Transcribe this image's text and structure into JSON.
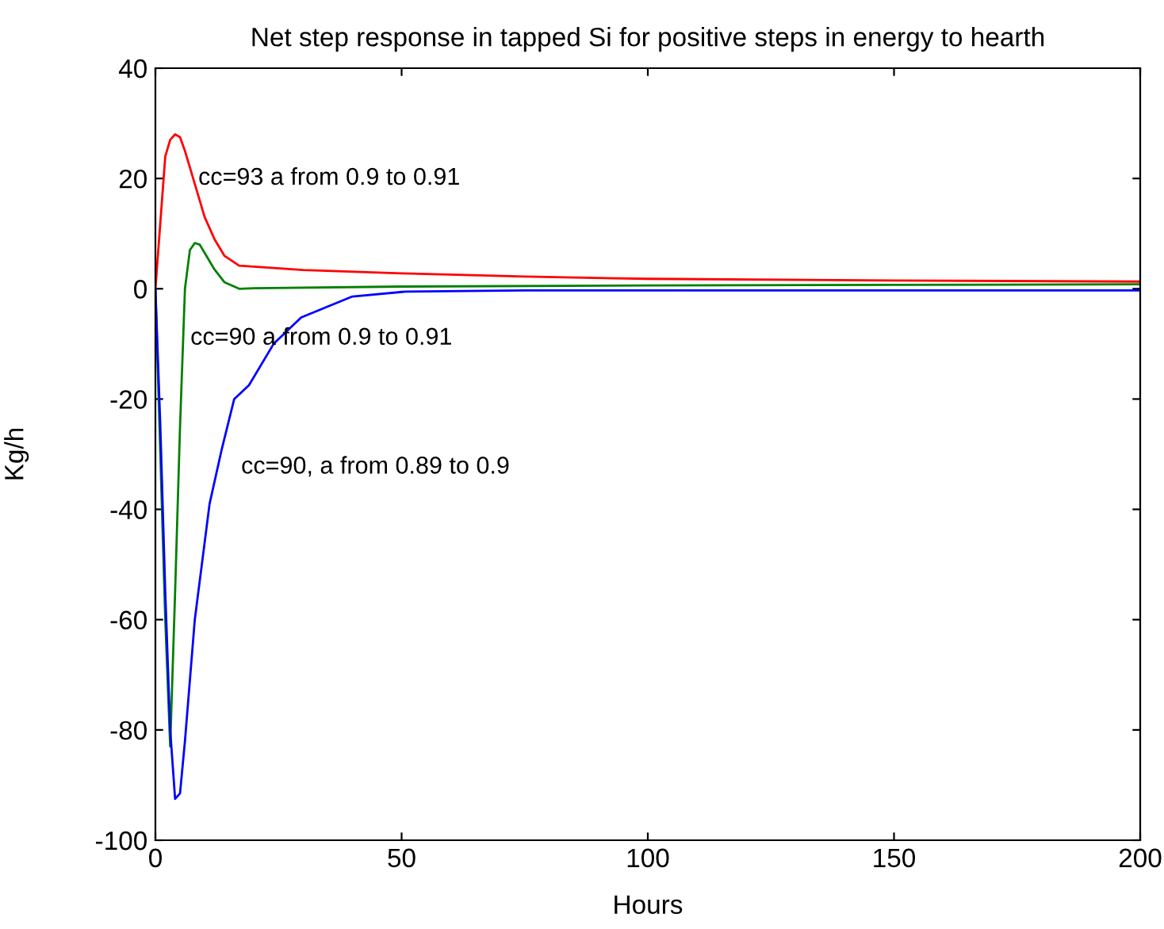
{
  "chart_data": {
    "type": "line",
    "title": "Net step response in tapped Si for positive steps in energy to hearth",
    "xlabel": "Hours",
    "ylabel": "Kg/h",
    "xlim": [
      0,
      200
    ],
    "xticks": [
      0,
      50,
      100,
      150,
      200
    ],
    "ylim": [
      -100,
      40
    ],
    "yticks": [
      -100,
      -80,
      -60,
      -40,
      -20,
      0,
      20,
      40
    ],
    "grid": false,
    "legend": false,
    "marker": "none",
    "line_style": "solid",
    "series": [
      {
        "color": "#ff0000",
        "x": [
          0,
          1,
          2,
          3,
          4,
          5,
          6,
          7,
          8,
          9,
          10,
          12,
          14,
          17,
          20,
          30,
          50,
          75,
          100,
          150,
          200
        ],
        "values": [
          0,
          12,
          24,
          27,
          28,
          27.5,
          25,
          22,
          19,
          16,
          13,
          9,
          6,
          4.2,
          4,
          3.4,
          2.8,
          2.2,
          1.8,
          1.5,
          1.3
        ]
      },
      {
        "color": "#008000",
        "x": [
          0,
          1,
          2,
          3,
          4,
          5,
          6,
          7,
          8,
          9,
          10,
          12,
          14,
          17,
          20,
          50,
          100,
          150,
          200
        ],
        "values": [
          0,
          -30,
          -60,
          -83,
          -55,
          -25,
          0,
          7,
          8.3,
          8,
          6.5,
          3.5,
          1.2,
          0,
          0.1,
          0.4,
          0.6,
          0.7,
          0.8
        ]
      },
      {
        "color": "#0000ff",
        "x": [
          0,
          1,
          2,
          3,
          4,
          5,
          6,
          8,
          11,
          13.5,
          16,
          19,
          24,
          29.6,
          40,
          51,
          75,
          100,
          150,
          200
        ],
        "values": [
          0,
          -25,
          -55,
          -80,
          -92.5,
          -91.5,
          -82,
          -60,
          -39,
          -29,
          -20,
          -17.5,
          -10,
          -5.2,
          -1.4,
          -0.5,
          -0.3,
          -0.3,
          -0.3,
          -0.3
        ]
      }
    ],
    "annotations": [
      {
        "text": "cc=93 a from 0.9 to 0.91",
        "x": 8.7,
        "y": 20
      },
      {
        "text": "cc=90 a from 0.9 to 0.91",
        "x": 7.1,
        "y": -9
      },
      "cc=90, a from 0.89 to 0.9"
    ]
  }
}
